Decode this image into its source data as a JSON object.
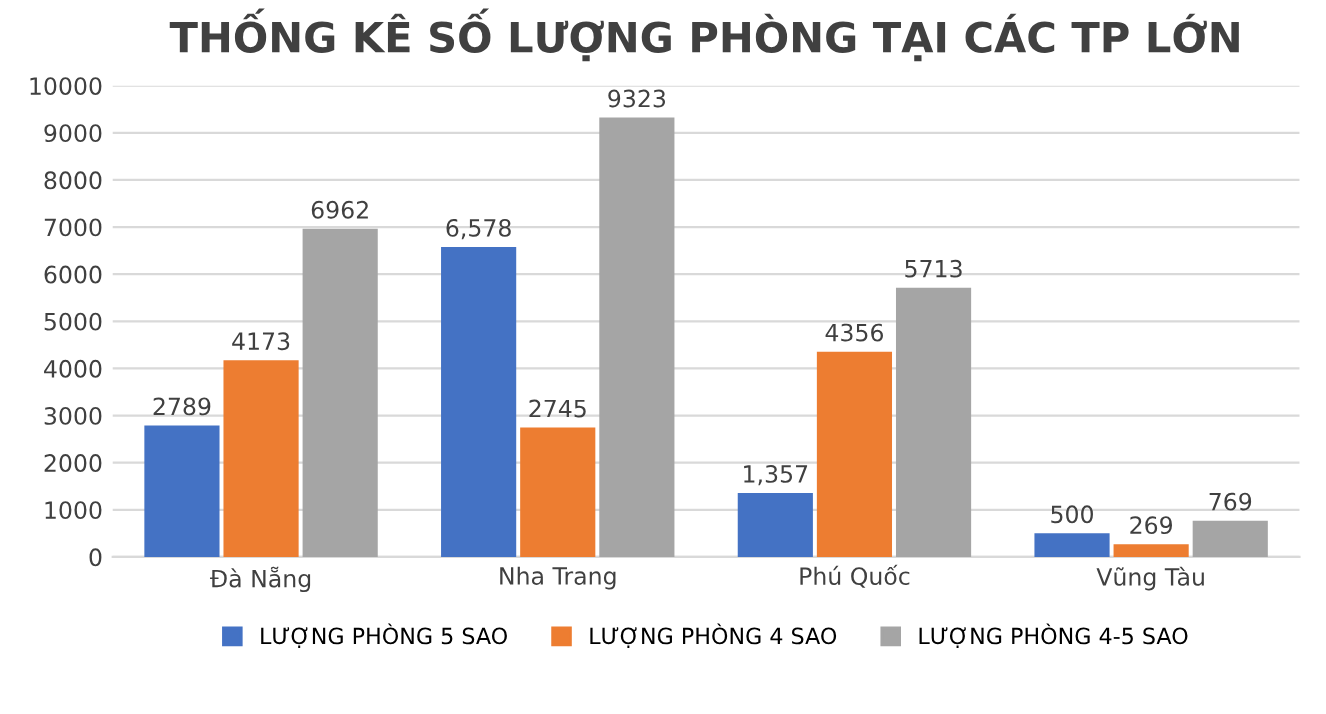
{
  "chart_data": {
    "type": "bar",
    "title": "THỐNG KÊ SỐ LƯỢNG PHÒNG TẠI CÁC TP LỚN",
    "categories": [
      "Đà Nẵng",
      "Nha Trang",
      "Phú Quốc",
      "Vũng Tàu"
    ],
    "series": [
      {
        "name": "LƯỢNG PHÒNG 5 SAO",
        "color": "#4472c4",
        "values": [
          2789,
          6578,
          1357,
          500
        ],
        "value_labels": [
          "2789",
          "6,578",
          "1,357",
          "500"
        ]
      },
      {
        "name": "LƯỢNG PHÒNG 4 SAO",
        "color": "#ed7d31",
        "values": [
          4173,
          2745,
          4356,
          269
        ],
        "value_labels": [
          "4173",
          "2745",
          "4356",
          "269"
        ]
      },
      {
        "name": "LƯỢNG PHÒNG 4-5 SAO",
        "color": "#a5a5a5",
        "values": [
          6962,
          9323,
          5713,
          769
        ],
        "value_labels": [
          "6962",
          "9323",
          "5713",
          "769"
        ]
      }
    ],
    "ylim": [
      0,
      10000
    ],
    "yticks": [
      0,
      1000,
      2000,
      3000,
      4000,
      5000,
      6000,
      7000,
      8000,
      9000,
      10000
    ],
    "grid": "y",
    "legend": "bottom"
  }
}
